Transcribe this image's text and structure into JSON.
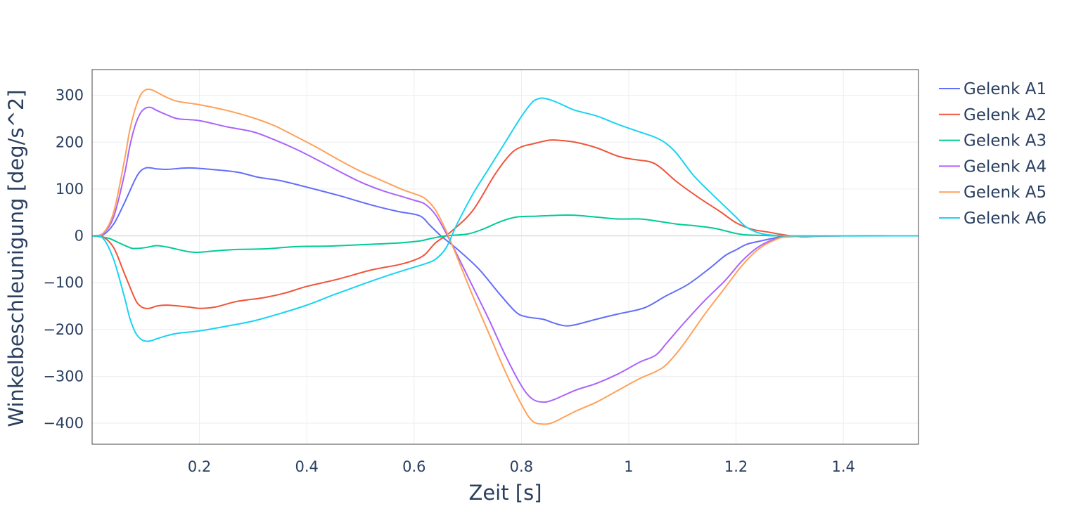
{
  "chart_data": {
    "type": "line",
    "xlabel": "Zeit [s]",
    "ylabel": "Winkelbeschleunigung [deg/s^2]",
    "xlim": [
      0.0,
      1.54
    ],
    "ylim": [
      -445,
      355
    ],
    "x_ticks": [
      0.2,
      0.4,
      0.6,
      0.8,
      1.0,
      1.2,
      1.4
    ],
    "x_tick_labels": [
      "0.2",
      "0.4",
      "0.6",
      "0.8",
      "1",
      "1.2",
      "1.4"
    ],
    "y_ticks": [
      300,
      200,
      100,
      0,
      -100,
      -200,
      -300,
      -400
    ],
    "y_tick_labels": [
      "300",
      "200",
      "100",
      "0",
      "−100",
      "−200",
      "−300",
      "−400"
    ],
    "grid": true,
    "legend_position": "right",
    "series": [
      {
        "name": "Gelenk A1",
        "color": "#636efa",
        "x": [
          0.0,
          0.02,
          0.04,
          0.06,
          0.08,
          0.09,
          0.1,
          0.11,
          0.12,
          0.14,
          0.18,
          0.22,
          0.27,
          0.31,
          0.35,
          0.4,
          0.46,
          0.52,
          0.57,
          0.61,
          0.63,
          0.65,
          0.68,
          0.72,
          0.76,
          0.79,
          0.81,
          0.84,
          0.86,
          0.88,
          0.9,
          0.94,
          0.98,
          1.02,
          1.04,
          1.07,
          1.11,
          1.15,
          1.18,
          1.2,
          1.22,
          1.25,
          1.27,
          1.29,
          1.32,
          1.36,
          1.4,
          1.54
        ],
        "values": [
          0,
          2,
          25,
          70,
          120,
          138,
          145,
          145,
          143,
          142,
          145,
          142,
          136,
          125,
          118,
          104,
          86,
          66,
          52,
          43,
          22,
          0,
          -28,
          -70,
          -125,
          -163,
          -173,
          -178,
          -186,
          -192,
          -190,
          -178,
          -167,
          -157,
          -148,
          -128,
          -104,
          -70,
          -42,
          -30,
          -18,
          -10,
          -5,
          -1,
          0,
          0,
          0,
          0
        ]
      },
      {
        "name": "Gelenk A2",
        "color": "#ef553b",
        "x": [
          0.0,
          0.02,
          0.04,
          0.06,
          0.08,
          0.09,
          0.1,
          0.11,
          0.12,
          0.14,
          0.18,
          0.2,
          0.23,
          0.27,
          0.32,
          0.36,
          0.4,
          0.46,
          0.52,
          0.57,
          0.6,
          0.62,
          0.64,
          0.67,
          0.71,
          0.75,
          0.78,
          0.8,
          0.82,
          0.85,
          0.87,
          0.9,
          0.94,
          0.98,
          1.01,
          1.04,
          1.06,
          1.09,
          1.13,
          1.17,
          1.2,
          1.23,
          1.26,
          1.29,
          1.32,
          1.35,
          1.4,
          1.54
        ],
        "values": [
          0,
          -2,
          -25,
          -80,
          -135,
          -150,
          -155,
          -154,
          -150,
          -148,
          -152,
          -155,
          -152,
          -140,
          -132,
          -122,
          -108,
          -92,
          -73,
          -62,
          -52,
          -40,
          -15,
          10,
          55,
          130,
          175,
          190,
          196,
          204,
          204,
          200,
          188,
          170,
          163,
          158,
          145,
          115,
          82,
          52,
          28,
          14,
          8,
          2,
          -2,
          -1,
          0,
          0
        ]
      },
      {
        "name": "Gelenk A3",
        "color": "#00cc96",
        "x": [
          0.0,
          0.03,
          0.05,
          0.07,
          0.08,
          0.1,
          0.12,
          0.14,
          0.18,
          0.2,
          0.23,
          0.27,
          0.32,
          0.38,
          0.44,
          0.5,
          0.56,
          0.61,
          0.63,
          0.66,
          0.7,
          0.73,
          0.76,
          0.79,
          0.83,
          0.87,
          0.9,
          0.94,
          0.98,
          1.02,
          1.05,
          1.09,
          1.12,
          1.16,
          1.2,
          1.22,
          1.25,
          1.3,
          1.54
        ],
        "values": [
          0,
          -5,
          -15,
          -25,
          -27,
          -25,
          -21,
          -24,
          -34,
          -35,
          -32,
          -29,
          -28,
          -23,
          -22,
          -19,
          -16,
          -11,
          -6,
          0,
          4,
          15,
          30,
          40,
          42,
          44,
          44,
          40,
          36,
          36,
          32,
          25,
          22,
          16,
          5,
          2,
          1,
          0,
          0
        ]
      },
      {
        "name": "Gelenk A4",
        "color": "#ab63fa",
        "x": [
          0.0,
          0.02,
          0.04,
          0.06,
          0.07,
          0.08,
          0.09,
          0.1,
          0.11,
          0.12,
          0.14,
          0.16,
          0.2,
          0.25,
          0.3,
          0.34,
          0.38,
          0.42,
          0.46,
          0.5,
          0.54,
          0.58,
          0.6,
          0.62,
          0.64,
          0.66,
          0.68,
          0.71,
          0.74,
          0.77,
          0.8,
          0.82,
          0.84,
          0.86,
          0.9,
          0.94,
          0.98,
          1.02,
          1.05,
          1.07,
          1.1,
          1.14,
          1.18,
          1.21,
          1.24,
          1.27,
          1.3,
          1.4,
          1.54
        ],
        "values": [
          0,
          5,
          40,
          130,
          190,
          235,
          262,
          273,
          274,
          268,
          258,
          250,
          246,
          233,
          222,
          205,
          185,
          162,
          138,
          115,
          97,
          83,
          76,
          68,
          45,
          5,
          -40,
          -110,
          -180,
          -255,
          -320,
          -348,
          -355,
          -350,
          -330,
          -315,
          -295,
          -270,
          -255,
          -230,
          -190,
          -140,
          -95,
          -55,
          -25,
          -8,
          -2,
          0,
          0
        ]
      },
      {
        "name": "Gelenk A5",
        "color": "#ffa15a",
        "x": [
          0.0,
          0.02,
          0.04,
          0.06,
          0.07,
          0.08,
          0.09,
          0.1,
          0.11,
          0.12,
          0.14,
          0.16,
          0.2,
          0.25,
          0.3,
          0.34,
          0.38,
          0.42,
          0.46,
          0.5,
          0.54,
          0.58,
          0.6,
          0.62,
          0.64,
          0.66,
          0.68,
          0.71,
          0.74,
          0.77,
          0.8,
          0.82,
          0.84,
          0.86,
          0.9,
          0.94,
          0.98,
          1.02,
          1.05,
          1.07,
          1.1,
          1.14,
          1.18,
          1.21,
          1.24,
          1.27,
          1.3,
          1.4,
          1.54
        ],
        "values": [
          0,
          5,
          50,
          160,
          225,
          270,
          300,
          312,
          312,
          307,
          295,
          287,
          280,
          268,
          252,
          235,
          212,
          188,
          162,
          138,
          118,
          98,
          90,
          80,
          55,
          10,
          -45,
          -130,
          -210,
          -290,
          -360,
          -395,
          -402,
          -398,
          -375,
          -355,
          -330,
          -305,
          -290,
          -275,
          -235,
          -170,
          -110,
          -65,
          -30,
          -10,
          -2,
          0,
          0
        ]
      },
      {
        "name": "Gelenk A6",
        "color": "#19d3f3",
        "x": [
          0.0,
          0.02,
          0.04,
          0.06,
          0.07,
          0.08,
          0.09,
          0.1,
          0.11,
          0.12,
          0.14,
          0.16,
          0.2,
          0.25,
          0.3,
          0.35,
          0.4,
          0.45,
          0.5,
          0.55,
          0.6,
          0.62,
          0.64,
          0.66,
          0.68,
          0.71,
          0.74,
          0.77,
          0.8,
          0.82,
          0.83,
          0.84,
          0.86,
          0.88,
          0.9,
          0.94,
          0.98,
          1.02,
          1.05,
          1.07,
          1.09,
          1.12,
          1.15,
          1.18,
          1.2,
          1.22,
          1.25,
          1.3,
          1.4,
          1.54
        ],
        "values": [
          0,
          -5,
          -50,
          -130,
          -175,
          -205,
          -220,
          -225,
          -224,
          -220,
          -213,
          -208,
          -203,
          -193,
          -182,
          -166,
          -148,
          -126,
          -105,
          -85,
          -67,
          -60,
          -50,
          -25,
          25,
          90,
          145,
          200,
          255,
          285,
          292,
          294,
          288,
          278,
          268,
          256,
          238,
          222,
          210,
          197,
          175,
          130,
          95,
          62,
          40,
          18,
          4,
          0,
          0,
          0
        ]
      }
    ]
  }
}
